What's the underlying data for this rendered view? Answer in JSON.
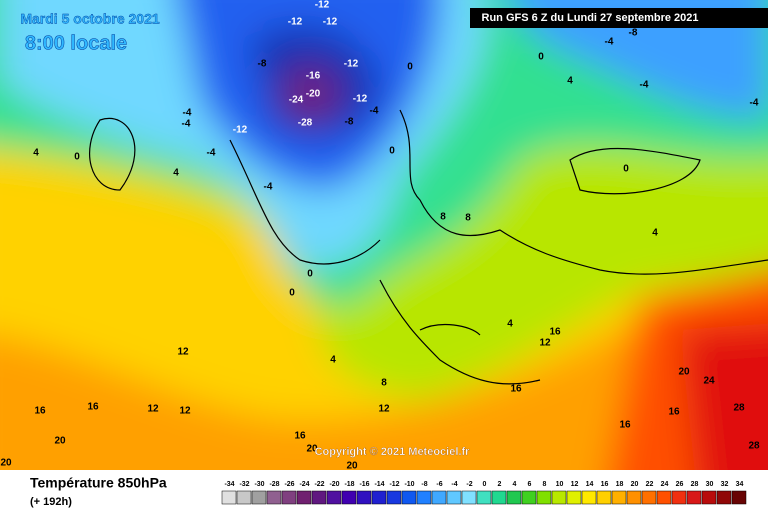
{
  "header": {
    "date": "Mardi 5 octobre 2021",
    "time": "8:00 locale",
    "run": "Run GFS 6 Z du Lundi 27 septembre 2021",
    "copyright": "Copyright © 2021 Meteociel.fr"
  },
  "footer": {
    "title": "Température 850hPa",
    "lead": "(+ 192h)"
  },
  "scale": {
    "ticks": [
      -34,
      -32,
      -30,
      -28,
      -26,
      -24,
      -22,
      -20,
      -18,
      -16,
      -14,
      -12,
      -10,
      -8,
      -6,
      -4,
      -2,
      0,
      2,
      4,
      6,
      8,
      10,
      12,
      14,
      16,
      18,
      20,
      22,
      24,
      26,
      28,
      30,
      32,
      34
    ]
  },
  "map": {
    "labels": [
      -12,
      -12,
      -12,
      -8,
      -16,
      -12,
      -24,
      -20,
      -12,
      -28,
      -8,
      -12,
      -4,
      -4,
      -4,
      -4,
      -4,
      -8,
      -4,
      -4,
      -4,
      0,
      0,
      0,
      0,
      0,
      0,
      0,
      4,
      4,
      4,
      4,
      4,
      4,
      8,
      8,
      8,
      12,
      12,
      12,
      12,
      12,
      16,
      16,
      16,
      16,
      16,
      16,
      16,
      20,
      20,
      20,
      20,
      20,
      24,
      28,
      28
    ]
  }
}
